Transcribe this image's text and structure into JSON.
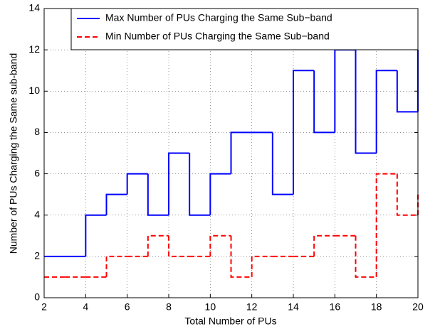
{
  "chart_data": {
    "type": "stairs",
    "x_label": "Total Number of PUs",
    "y_label": "Number of PUs Charging the Same sub-band",
    "x": [
      2,
      3,
      4,
      5,
      6,
      7,
      8,
      9,
      10,
      11,
      12,
      13,
      14,
      15,
      16,
      17,
      18,
      19,
      20
    ],
    "series": [
      {
        "name": "Max Number of PUs Charging the Same Sub−band",
        "color": "#0000ff",
        "dash": "solid",
        "values": [
          2,
          2,
          4,
          5,
          6,
          4,
          7,
          4,
          6,
          8,
          8,
          5,
          11,
          8,
          12,
          7,
          11,
          9,
          12
        ]
      },
      {
        "name": "Min Number of PUs Charging the Same Sub−band",
        "color": "#ff0000",
        "dash": "dashed",
        "values": [
          1,
          1,
          1,
          2,
          2,
          3,
          2,
          2,
          3,
          1,
          2,
          2,
          2,
          3,
          3,
          1,
          6,
          4,
          5
        ]
      }
    ],
    "xlim": [
      2,
      20
    ],
    "xticks": [
      2,
      4,
      6,
      8,
      10,
      12,
      14,
      16,
      18,
      20
    ],
    "ylim": [
      0,
      14
    ],
    "yticks": [
      0,
      2,
      4,
      6,
      8,
      10,
      12,
      14
    ],
    "grid": true,
    "legend": "top-right"
  }
}
